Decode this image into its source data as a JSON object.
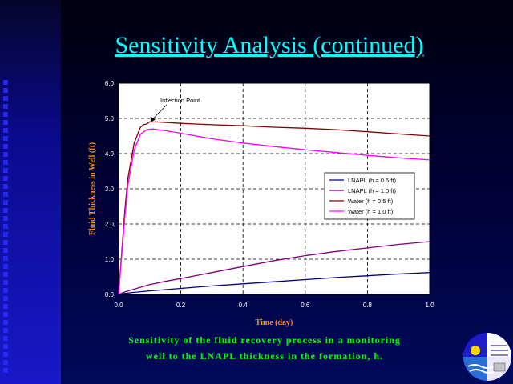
{
  "slide": {
    "title": "Sensitivity Analysis (continued)",
    "caption_line1": "Sensitivity of the fluid recovery process in a monitoring",
    "caption_line2": "well to the LNAPL thickness in the formation, h."
  },
  "colors": {
    "title": "#00ffff",
    "caption": "#00ff00",
    "axis_labels": "#ff8c00",
    "plot_background": "#ffffff",
    "lnapl_05": "#000080",
    "lnapl_10": "#800080",
    "water_05": "#800000",
    "water_10": "#ff00ff"
  },
  "chart_data": {
    "type": "line",
    "xlabel": "Time (day)",
    "ylabel": "Fluid Thickness in Well (ft)",
    "xlim": [
      0,
      1
    ],
    "ylim": [
      0,
      6
    ],
    "x_ticks": [
      "0.0",
      "0.2",
      "0.4",
      "0.6",
      "0.8",
      "1.0"
    ],
    "y_ticks": [
      "0.0",
      "1.0",
      "2.0",
      "3.0",
      "4.0",
      "5.0",
      "6.0"
    ],
    "grid": "dashed",
    "legend_position": "right-middle",
    "annotation": {
      "text": "Inflection Point",
      "points_to": [
        0.1,
        4.85
      ]
    },
    "series": [
      {
        "name": "LNAPL (h = 0.5 ft)",
        "color": "#000080",
        "x": [
          0,
          0.02,
          0.05,
          0.1,
          0.2,
          0.3,
          0.4,
          0.5,
          0.6,
          0.7,
          0.8,
          0.9,
          1.0
        ],
        "y": [
          0,
          0.03,
          0.06,
          0.1,
          0.17,
          0.24,
          0.3,
          0.36,
          0.42,
          0.48,
          0.53,
          0.58,
          0.62
        ]
      },
      {
        "name": "LNAPL (h = 1.0 ft)",
        "color": "#800080",
        "x": [
          0,
          0.02,
          0.05,
          0.1,
          0.15,
          0.2,
          0.3,
          0.4,
          0.5,
          0.6,
          0.7,
          0.8,
          0.9,
          1.0
        ],
        "y": [
          0,
          0.07,
          0.15,
          0.28,
          0.37,
          0.45,
          0.62,
          0.79,
          0.96,
          1.1,
          1.22,
          1.32,
          1.42,
          1.5
        ]
      },
      {
        "name": "Water (h = 0.5 ft)",
        "color": "#800000",
        "x": [
          0,
          0.01,
          0.02,
          0.03,
          0.05,
          0.07,
          0.08,
          0.09,
          0.1,
          0.12,
          0.2,
          0.3,
          0.4,
          0.5,
          0.6,
          0.7,
          0.8,
          0.9,
          1.0
        ],
        "y": [
          0,
          1.2,
          2.4,
          3.3,
          4.3,
          4.75,
          4.82,
          4.84,
          4.9,
          4.9,
          4.86,
          4.82,
          4.79,
          4.75,
          4.72,
          4.68,
          4.62,
          4.56,
          4.5
        ]
      },
      {
        "name": "Water (h = 1.0 ft)",
        "color": "#ff00ff",
        "x": [
          0,
          0.01,
          0.02,
          0.03,
          0.05,
          0.07,
          0.09,
          0.11,
          0.15,
          0.2,
          0.3,
          0.4,
          0.5,
          0.6,
          0.7,
          0.8,
          0.9,
          1.0
        ],
        "y": [
          0,
          1.1,
          2.2,
          3.1,
          4.1,
          4.55,
          4.68,
          4.7,
          4.65,
          4.58,
          4.42,
          4.3,
          4.2,
          4.11,
          4.03,
          3.95,
          3.88,
          3.82
        ]
      }
    ]
  }
}
